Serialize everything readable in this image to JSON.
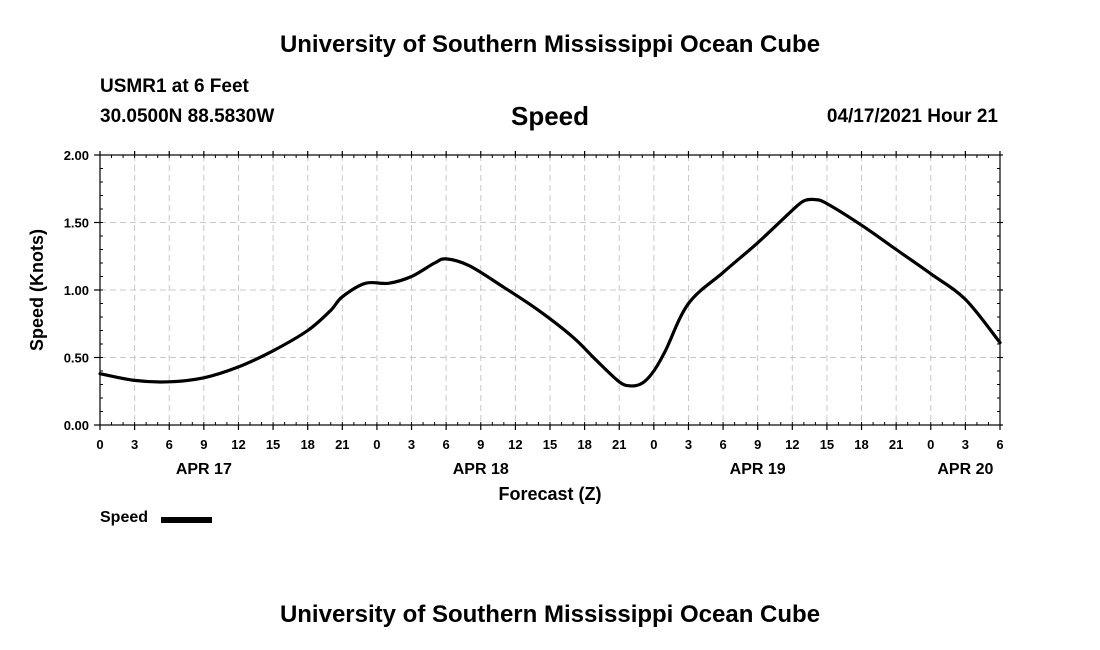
{
  "header": {
    "title": "University of Southern Mississippi Ocean Cube",
    "station": "USMR1 at 6 Feet",
    "coordinates": "30.0500N  88.5830W",
    "run_time": "04/17/2021 Hour 21"
  },
  "footer": {
    "title": "University of Southern Mississippi Ocean Cube"
  },
  "legend": {
    "label": "Speed",
    "color": "#000000"
  },
  "chart_data": {
    "type": "line",
    "title": "Speed",
    "xlabel": "Forecast (Z)",
    "ylabel": "Speed (Knots)",
    "ylim": [
      0,
      2
    ],
    "xlim": [
      0,
      78
    ],
    "x_unit": "hours since APR 17 00Z",
    "grid": true,
    "y_ticks": [
      0,
      0.5,
      1,
      1.5,
      2
    ],
    "y_tick_labels": [
      "0.00",
      "0.50",
      "1.00",
      "1.50",
      "2.00"
    ],
    "x_tick_hours": [
      0,
      3,
      6,
      9,
      12,
      15,
      18,
      21,
      24,
      27,
      30,
      33,
      36,
      39,
      42,
      45,
      48,
      51,
      54,
      57,
      60,
      63,
      66,
      69,
      72,
      75,
      78
    ],
    "x_tick_labels": [
      "0",
      "3",
      "6",
      "9",
      "12",
      "15",
      "18",
      "21",
      "0",
      "3",
      "6",
      "9",
      "12",
      "15",
      "18",
      "21",
      "0",
      "3",
      "6",
      "9",
      "12",
      "15",
      "18",
      "21",
      "0",
      "3",
      "6"
    ],
    "date_labels": [
      {
        "hour": 9,
        "label": "APR 17"
      },
      {
        "hour": 33,
        "label": "APR 18"
      },
      {
        "hour": 57,
        "label": "APR 19"
      },
      {
        "hour": 75,
        "label": "APR 20"
      }
    ],
    "series": [
      {
        "name": "Speed",
        "x": [
          0,
          3,
          6,
          9,
          12,
          15,
          18,
          20,
          21,
          23,
          25,
          27,
          29,
          30,
          32,
          35,
          38,
          41,
          43,
          45,
          46,
          47,
          48,
          49,
          51,
          54,
          57,
          60,
          61,
          62,
          63,
          66,
          69,
          72,
          75,
          78
        ],
        "values": [
          0.38,
          0.33,
          0.32,
          0.35,
          0.43,
          0.55,
          0.7,
          0.85,
          0.95,
          1.05,
          1.05,
          1.1,
          1.2,
          1.23,
          1.18,
          1.02,
          0.85,
          0.65,
          0.48,
          0.32,
          0.29,
          0.31,
          0.4,
          0.55,
          0.9,
          1.13,
          1.35,
          1.59,
          1.66,
          1.67,
          1.64,
          1.48,
          1.3,
          1.12,
          0.93,
          0.61
        ]
      }
    ]
  }
}
